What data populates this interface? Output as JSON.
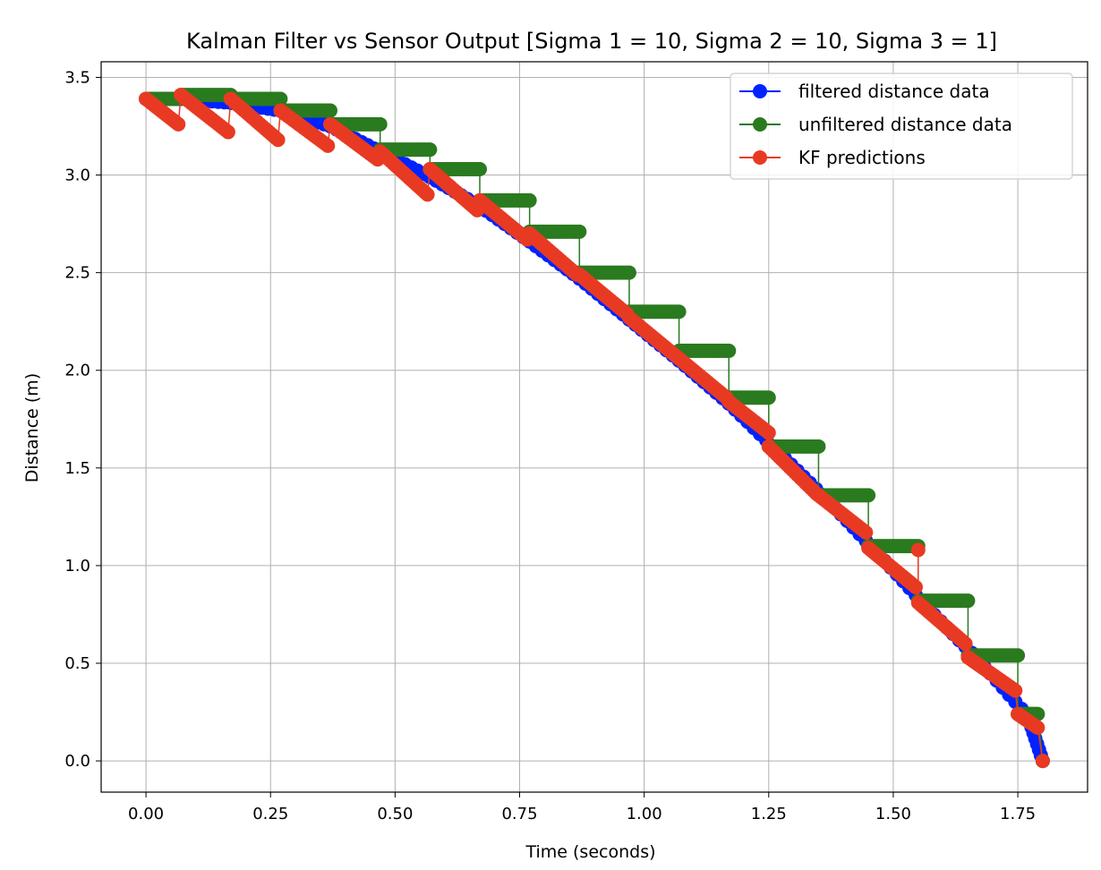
{
  "chart_data": {
    "type": "line",
    "title": "Kalman Filter vs Sensor Output [Sigma 1 = 10, Sigma 2 = 10, Sigma 3 = 1]",
    "xlabel": "Time (seconds)",
    "ylabel": "Distance (m)",
    "xlim": [
      -0.09,
      1.89
    ],
    "ylim": [
      -0.16,
      3.58
    ],
    "xticks": [
      0.0,
      0.25,
      0.5,
      0.75,
      1.0,
      1.25,
      1.5,
      1.75
    ],
    "xtick_labels": [
      "0.00",
      "0.25",
      "0.50",
      "0.75",
      "1.00",
      "1.25",
      "1.50",
      "1.75"
    ],
    "yticks": [
      0.0,
      0.5,
      1.0,
      1.5,
      2.0,
      2.5,
      3.0,
      3.5
    ],
    "ytick_labels": [
      "0.0",
      "0.5",
      "1.0",
      "1.5",
      "2.0",
      "2.5",
      "3.0",
      "3.5"
    ],
    "grid": true,
    "legend_position": "top-right",
    "series": [
      {
        "name": "filtered distance data",
        "color": "#0022ff",
        "x": [
          0.0,
          0.07,
          0.17,
          0.27,
          0.37,
          0.47,
          0.57,
          0.67,
          0.77,
          0.87,
          0.97,
          1.07,
          1.17,
          1.27,
          1.37,
          1.47,
          1.57,
          1.67,
          1.77,
          1.8
        ],
        "y": [
          3.39,
          3.39,
          3.37,
          3.33,
          3.25,
          3.12,
          2.99,
          2.84,
          2.66,
          2.47,
          2.26,
          2.05,
          1.83,
          1.58,
          1.33,
          1.06,
          0.78,
          0.52,
          0.23,
          0.0
        ]
      },
      {
        "name": "unfiltered distance data",
        "color": "#2a7a1f",
        "steps": [
          {
            "x0": 0.0,
            "x1": 0.07,
            "y": 3.39
          },
          {
            "x0": 0.07,
            "x1": 0.17,
            "y": 3.41
          },
          {
            "x0": 0.17,
            "x1": 0.27,
            "y": 3.39
          },
          {
            "x0": 0.27,
            "x1": 0.37,
            "y": 3.33
          },
          {
            "x0": 0.37,
            "x1": 0.47,
            "y": 3.26
          },
          {
            "x0": 0.47,
            "x1": 0.57,
            "y": 3.13
          },
          {
            "x0": 0.57,
            "x1": 0.67,
            "y": 3.03
          },
          {
            "x0": 0.67,
            "x1": 0.77,
            "y": 2.87
          },
          {
            "x0": 0.77,
            "x1": 0.87,
            "y": 2.71
          },
          {
            "x0": 0.87,
            "x1": 0.97,
            "y": 2.5
          },
          {
            "x0": 0.97,
            "x1": 1.07,
            "y": 2.3
          },
          {
            "x0": 1.07,
            "x1": 1.17,
            "y": 2.1
          },
          {
            "x0": 1.17,
            "x1": 1.25,
            "y": 1.86
          },
          {
            "x0": 1.25,
            "x1": 1.35,
            "y": 1.61
          },
          {
            "x0": 1.35,
            "x1": 1.45,
            "y": 1.36
          },
          {
            "x0": 1.45,
            "x1": 1.55,
            "y": 1.1
          },
          {
            "x0": 1.55,
            "x1": 1.65,
            "y": 0.82
          },
          {
            "x0": 1.65,
            "x1": 1.75,
            "y": 0.54
          },
          {
            "x0": 1.75,
            "x1": 1.79,
            "y": 0.24
          }
        ],
        "final_point": {
          "x": 1.8,
          "y": 0.0
        }
      },
      {
        "name": "KF predictions",
        "color": "#e83a22",
        "segments": [
          {
            "x0": 0.0,
            "y0": 3.39,
            "x1": 0.065,
            "y1": 3.26
          },
          {
            "x0": 0.07,
            "y0": 3.41,
            "x1": 0.165,
            "y1": 3.22
          },
          {
            "x0": 0.17,
            "y0": 3.39,
            "x1": 0.265,
            "y1": 3.18
          },
          {
            "x0": 0.27,
            "y0": 3.33,
            "x1": 0.365,
            "y1": 3.15
          },
          {
            "x0": 0.37,
            "y0": 3.26,
            "x1": 0.465,
            "y1": 3.08
          },
          {
            "x0": 0.47,
            "y0": 3.12,
            "x1": 0.565,
            "y1": 2.9
          },
          {
            "x0": 0.57,
            "y0": 3.03,
            "x1": 0.665,
            "y1": 2.82
          },
          {
            "x0": 0.67,
            "y0": 2.87,
            "x1": 0.765,
            "y1": 2.67
          },
          {
            "x0": 0.77,
            "y0": 2.7,
            "x1": 0.865,
            "y1": 2.49
          },
          {
            "x0": 0.87,
            "y0": 2.49,
            "x1": 0.965,
            "y1": 2.29
          },
          {
            "x0": 0.97,
            "y0": 2.27,
            "x1": 1.065,
            "y1": 2.07
          },
          {
            "x0": 1.07,
            "y0": 2.06,
            "x1": 1.165,
            "y1": 1.86
          },
          {
            "x0": 1.17,
            "y0": 1.84,
            "x1": 1.25,
            "y1": 1.68
          },
          {
            "x0": 1.25,
            "y0": 1.61,
            "x1": 1.345,
            "y1": 1.37
          },
          {
            "x0": 1.35,
            "y0": 1.36,
            "x1": 1.445,
            "y1": 1.17
          },
          {
            "x0": 1.45,
            "y0": 1.09,
            "x1": 1.545,
            "y1": 0.89
          },
          {
            "x0": 1.55,
            "y0": 0.81,
            "x1": 1.645,
            "y1": 0.6
          },
          {
            "x0": 1.65,
            "y0": 0.53,
            "x1": 1.745,
            "y1": 0.36
          },
          {
            "x0": 1.75,
            "y0": 0.24,
            "x1": 1.79,
            "y1": 0.17
          }
        ],
        "outliers": [
          {
            "x": 1.55,
            "y": 1.08
          }
        ],
        "final_point": {
          "x": 1.8,
          "y": 0.0
        }
      }
    ]
  }
}
